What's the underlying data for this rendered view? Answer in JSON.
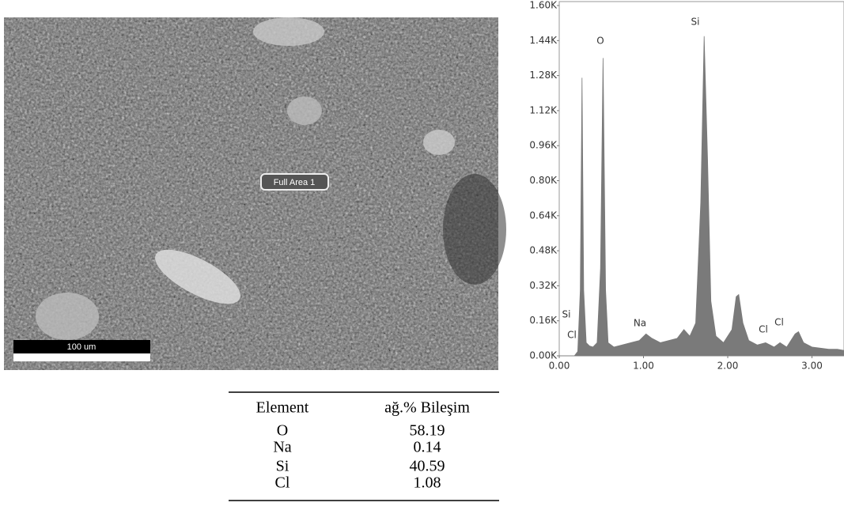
{
  "image": {
    "label": "Full Area 1",
    "scale_bar": "100 um"
  },
  "table": {
    "header": [
      "Element",
      "ağ.% Bileşim"
    ],
    "rows": [
      [
        "O",
        58.19
      ],
      [
        "Na",
        0.14
      ],
      [
        "Si",
        40.59
      ],
      [
        "Cl",
        1.08
      ]
    ]
  },
  "chart_data": {
    "type": "area",
    "color": "#7a7a7a",
    "x": [
      0.0,
      0.1,
      0.18,
      0.22,
      0.25,
      0.27,
      0.29,
      0.32,
      0.36,
      0.4,
      0.45,
      0.49,
      0.52,
      0.55,
      0.58,
      0.65,
      0.75,
      0.85,
      0.95,
      1.03,
      1.1,
      1.2,
      1.3,
      1.4,
      1.48,
      1.55,
      1.62,
      1.68,
      1.72,
      1.76,
      1.8,
      1.86,
      1.95,
      2.05,
      2.1,
      2.13,
      2.18,
      2.25,
      2.35,
      2.45,
      2.55,
      2.62,
      2.7,
      2.8,
      2.84,
      2.9,
      3.0,
      3.1,
      3.2,
      3.3,
      3.38
    ],
    "values": [
      0,
      0,
      0,
      20,
      300,
      1270,
      300,
      60,
      45,
      40,
      60,
      400,
      1360,
      300,
      60,
      40,
      50,
      60,
      70,
      100,
      80,
      60,
      70,
      80,
      120,
      90,
      150,
      700,
      1460,
      900,
      250,
      90,
      60,
      120,
      270,
      280,
      150,
      70,
      50,
      60,
      40,
      60,
      40,
      100,
      110,
      60,
      40,
      35,
      30,
      30,
      25
    ],
    "annotations": [
      "Si",
      "Cl",
      "O",
      "Na",
      "Si",
      "Cl",
      "Cl"
    ],
    "xlim": [
      0,
      3.38
    ],
    "ylim": [
      0,
      1600
    ],
    "xticks": [
      {
        "value": 0,
        "label": "0.00"
      },
      {
        "value": 1,
        "label": "1.00"
      },
      {
        "value": 2,
        "label": "2.00"
      },
      {
        "value": 3,
        "label": "3.00"
      }
    ],
    "yticks": [
      {
        "value": 0,
        "label": "0.00K"
      },
      {
        "value": 160,
        "label": "0.16K"
      },
      {
        "value": 320,
        "label": "0.32K"
      },
      {
        "value": 480,
        "label": "0.48K"
      },
      {
        "value": 640,
        "label": "0.64K"
      },
      {
        "value": 800,
        "label": "0.80K"
      },
      {
        "value": 960,
        "label": "0.96K"
      },
      {
        "value": 1120,
        "label": "1.12K"
      },
      {
        "value": 1280,
        "label": "1.28K"
      },
      {
        "value": 1440,
        "label": "1.44K"
      },
      {
        "value": 1600,
        "label": "1.60K"
      }
    ]
  }
}
